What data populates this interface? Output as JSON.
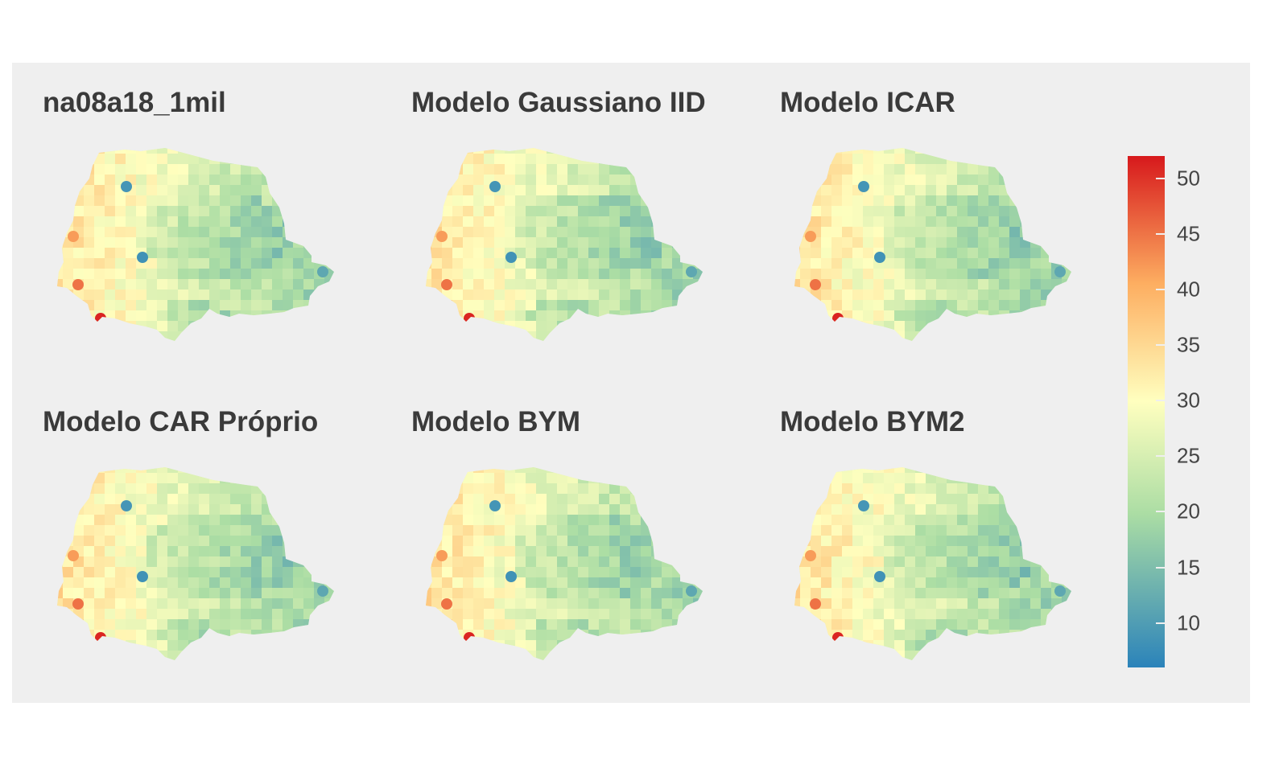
{
  "panels": [
    {
      "title": "na08a18_1mil"
    },
    {
      "title": "Modelo Gaussiano IID"
    },
    {
      "title": "Modelo ICAR"
    },
    {
      "title": "Modelo CAR Próprio"
    },
    {
      "title": "Modelo BYM"
    },
    {
      "title": "Modelo BYM2"
    }
  ],
  "legend": {
    "min": 6,
    "max": 52,
    "ticks": [
      10,
      15,
      20,
      25,
      30,
      35,
      40,
      45,
      50
    ],
    "palette": [
      "#2b83ba",
      "#abdda4",
      "#ffffbf",
      "#fdae61",
      "#d7191c"
    ],
    "palette_positions": [
      0,
      0.3,
      0.52,
      0.75,
      1
    ]
  },
  "colors": {
    "background": "#efefef",
    "title": "#3a3a3a"
  }
}
